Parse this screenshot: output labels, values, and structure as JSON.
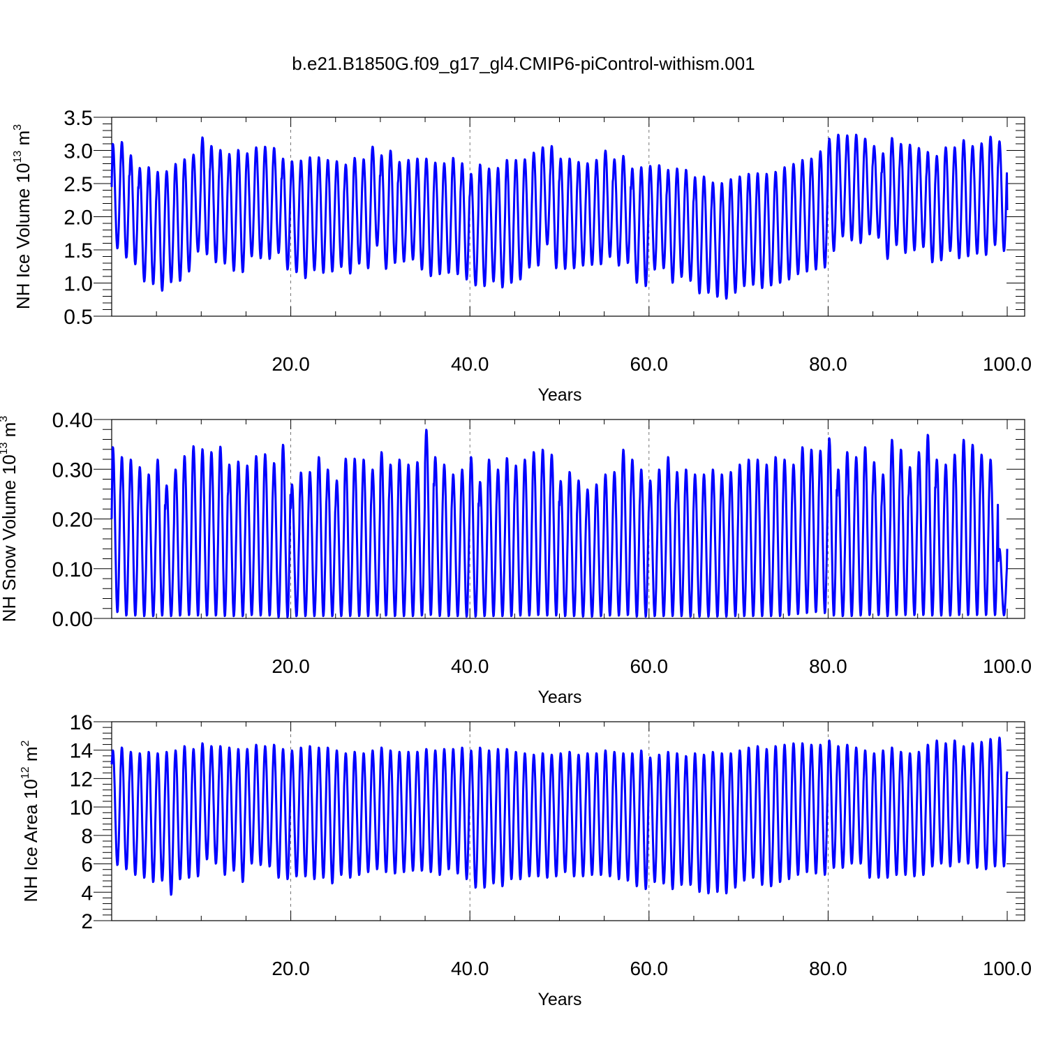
{
  "title": "b.e21.B1850G.f09_g17_gl4.CMIP6-piControl-withism.001",
  "line_color": "#0000ff",
  "grid_years": [
    20,
    40,
    60,
    80
  ],
  "chart_data": [
    {
      "type": "line",
      "title": "",
      "xlabel": "Years",
      "ylabel": "NH Ice Volume",
      "ylabel_units": "10",
      "ylabel_exp": "13",
      "ylabel_units2": "m",
      "ylabel_exp2": "3",
      "xlim": [
        0,
        100
      ],
      "ylim": [
        0.5,
        3.5
      ],
      "x_ticks": [
        "20.0",
        "40.0",
        "60.0",
        "80.0",
        "100.0"
      ],
      "y_ticks": [
        "0.5",
        "1.0",
        "1.5",
        "2.0",
        "2.5",
        "3.0",
        "3.5"
      ],
      "grid": "dashed vertical at 20, 40, 60, 80",
      "series": [
        {
          "start_value": 2.45,
          "end_value": 2.1,
          "annual_max": [
            3.1,
            3.13,
            2.93,
            2.74,
            2.75,
            2.68,
            2.69,
            2.8,
            2.87,
            2.94,
            3.2,
            3.07,
            3.01,
            2.95,
            3.01,
            2.96,
            3.05,
            3.06,
            3.04,
            2.88,
            2.84,
            2.85,
            2.9,
            2.9,
            2.86,
            2.84,
            2.79,
            2.89,
            2.87,
            3.06,
            2.93,
            3.0,
            2.83,
            2.86,
            2.88,
            2.88,
            2.82,
            2.81,
            2.89,
            2.81,
            2.65,
            2.79,
            2.73,
            2.74,
            2.86,
            2.86,
            2.87,
            2.97,
            3.05,
            3.07,
            2.88,
            2.88,
            2.83,
            2.81,
            2.86,
            3.0,
            2.87,
            2.92,
            2.73,
            2.75,
            2.77,
            2.78,
            2.71,
            2.73,
            2.71,
            2.6,
            2.61,
            2.52,
            2.51,
            2.57,
            2.61,
            2.65,
            2.66,
            2.65,
            2.68,
            2.75,
            2.8,
            2.86,
            2.88,
            2.99,
            3.18,
            3.24,
            3.23,
            3.24,
            3.18,
            3.07,
            2.96,
            3.19,
            3.1,
            3.09,
            3.04,
            2.98,
            2.92,
            3.05,
            3.05,
            3.16,
            3.07,
            3.11,
            3.21,
            3.14
          ],
          "annual_min": [
            1.52,
            1.38,
            1.28,
            1.02,
            0.98,
            0.88,
            1.01,
            1.03,
            1.17,
            1.47,
            1.43,
            1.31,
            1.29,
            1.18,
            1.16,
            1.4,
            1.37,
            1.36,
            1.45,
            1.2,
            1.16,
            1.07,
            1.19,
            1.15,
            1.17,
            1.24,
            1.14,
            1.29,
            1.22,
            1.56,
            1.21,
            1.3,
            1.32,
            1.35,
            1.2,
            1.1,
            1.13,
            1.15,
            1.13,
            1.05,
            0.96,
            0.95,
            1.02,
            0.93,
            1.0,
            1.05,
            1.23,
            1.26,
            1.58,
            1.22,
            1.21,
            1.22,
            1.26,
            1.27,
            1.28,
            1.39,
            1.26,
            1.3,
            1.0,
            0.95,
            1.2,
            1.22,
            1.0,
            1.09,
            1.03,
            0.84,
            0.85,
            0.79,
            0.76,
            0.85,
            0.95,
            0.97,
            0.92,
            0.96,
            1.0,
            1.05,
            1.13,
            1.17,
            1.2,
            1.23,
            1.48,
            1.7,
            1.64,
            1.6,
            1.73,
            1.68,
            1.36,
            1.57,
            1.45,
            1.49,
            1.54,
            1.31,
            1.34,
            1.48,
            1.37,
            1.4,
            1.44,
            1.42,
            1.57,
            1.48
          ]
        }
      ]
    },
    {
      "type": "line",
      "title": "",
      "xlabel": "Years",
      "ylabel": "NH Snow Volume",
      "ylabel_units": "10",
      "ylabel_exp": "13",
      "ylabel_units2": "m",
      "ylabel_exp2": "3",
      "xlim": [
        0,
        100
      ],
      "ylim": [
        0,
        0.4
      ],
      "x_ticks": [
        "20.0",
        "40.0",
        "60.0",
        "80.0",
        "100.0"
      ],
      "y_ticks": [
        "0.00",
        "0.10",
        "0.20",
        "0.30",
        "0.40"
      ],
      "grid": "dashed vertical at 20, 40, 60, 80",
      "series": [
        {
          "start_value": 0.2,
          "end_value": 0.14,
          "annual_max": [
            0.345,
            0.325,
            0.32,
            0.305,
            0.29,
            0.32,
            0.268,
            0.3,
            0.327,
            0.347,
            0.341,
            0.335,
            0.346,
            0.31,
            0.316,
            0.308,
            0.327,
            0.331,
            0.313,
            0.35,
            0.27,
            0.294,
            0.295,
            0.325,
            0.3,
            0.278,
            0.322,
            0.322,
            0.32,
            0.3,
            0.335,
            0.31,
            0.32,
            0.31,
            0.315,
            0.38,
            0.325,
            0.31,
            0.29,
            0.3,
            0.325,
            0.275,
            0.32,
            0.3,
            0.323,
            0.308,
            0.32,
            0.335,
            0.34,
            0.33,
            0.277,
            0.295,
            0.278,
            0.26,
            0.27,
            0.29,
            0.295,
            0.34,
            0.32,
            0.3,
            0.278,
            0.3,
            0.325,
            0.295,
            0.3,
            0.29,
            0.29,
            0.3,
            0.29,
            0.295,
            0.31,
            0.32,
            0.32,
            0.31,
            0.325,
            0.32,
            0.31,
            0.345,
            0.34,
            0.338,
            0.363,
            0.3,
            0.335,
            0.325,
            0.345,
            0.315,
            0.29,
            0.36,
            0.34,
            0.305,
            0.335,
            0.37,
            0.32,
            0.31,
            0.33,
            0.36,
            0.35,
            0.33,
            0.32,
            0.14
          ],
          "annual_min": [
            0.012,
            0.005,
            0.005,
            0.004,
            0.004,
            0.005,
            0.004,
            0.005,
            0.006,
            0.005,
            0.005,
            0.005,
            0.004,
            0.004,
            0.004,
            0.006,
            0.005,
            0.005,
            0.002,
            0.002,
            0.004,
            0.004,
            0.004,
            0.004,
            0.004,
            0.004,
            0.004,
            0.004,
            0.004,
            0.005,
            0.005,
            0.004,
            0.004,
            0.004,
            0.005,
            0.006,
            0.004,
            0.004,
            0.004,
            0.003,
            0.003,
            0.004,
            0.004,
            0.004,
            0.004,
            0.005,
            0.005,
            0.006,
            0.005,
            0.005,
            0.004,
            0.004,
            0.003,
            0.003,
            0.004,
            0.005,
            0.005,
            0.006,
            0.003,
            0.003,
            0.004,
            0.004,
            0.004,
            0.004,
            0.003,
            0.003,
            0.003,
            0.003,
            0.003,
            0.004,
            0.004,
            0.004,
            0.004,
            0.004,
            0.004,
            0.006,
            0.008,
            0.01,
            0.012,
            0.01,
            0.005,
            0.004,
            0.004,
            0.005,
            0.006,
            0.006,
            0.004,
            0.006,
            0.006,
            0.006,
            0.006,
            0.005,
            0.005,
            0.005,
            0.006,
            0.006,
            0.006,
            0.006,
            0.006,
            0.006
          ]
        }
      ]
    },
    {
      "type": "line",
      "title": "",
      "xlabel": "Years",
      "ylabel": "NH Ice Area",
      "ylabel_units": "10",
      "ylabel_exp": "12",
      "ylabel_units2": "m",
      "ylabel_exp2": "2",
      "xlim": [
        0,
        100
      ],
      "ylim": [
        2,
        16
      ],
      "x_ticks": [
        "20.0",
        "40.0",
        "60.0",
        "80.0",
        "100.0"
      ],
      "y_ticks": [
        "2",
        "4",
        "6",
        "8",
        "10",
        "12",
        "14",
        "16"
      ],
      "grid": "dashed vertical at 20, 40, 60, 80",
      "series": [
        {
          "start_value": 13.0,
          "end_value": 12.5,
          "annual_max": [
            14.0,
            14.2,
            13.9,
            13.8,
            13.9,
            13.8,
            13.9,
            14.0,
            14.3,
            14.1,
            14.5,
            14.3,
            14.3,
            14.2,
            14.1,
            14.1,
            14.4,
            14.3,
            14.4,
            14.1,
            14.0,
            14.2,
            14.3,
            14.2,
            14.2,
            14.0,
            13.8,
            13.9,
            13.8,
            14.0,
            14.2,
            14.0,
            13.9,
            13.9,
            13.9,
            14.1,
            14.0,
            14.1,
            14.1,
            14.2,
            14.0,
            14.2,
            14.0,
            14.1,
            14.1,
            13.9,
            13.8,
            13.7,
            13.8,
            13.7,
            13.8,
            13.9,
            13.7,
            13.8,
            13.8,
            14.0,
            13.9,
            13.8,
            13.8,
            14.0,
            13.5,
            13.7,
            13.9,
            13.8,
            13.6,
            13.8,
            13.7,
            13.9,
            13.8,
            13.8,
            14.0,
            14.2,
            14.3,
            14.1,
            14.3,
            14.4,
            14.5,
            14.5,
            14.4,
            14.4,
            14.7,
            14.3,
            14.4,
            14.2,
            14.0,
            13.8,
            14.0,
            14.2,
            13.9,
            13.8,
            13.9,
            14.4,
            14.7,
            14.5,
            14.7,
            14.3,
            14.5,
            14.6,
            14.8,
            14.9
          ],
          "annual_min": [
            5.9,
            5.6,
            5.2,
            5.0,
            4.7,
            4.8,
            3.8,
            4.9,
            5.0,
            5.1,
            6.3,
            6.0,
            5.2,
            5.5,
            4.7,
            6.0,
            5.9,
            5.8,
            5.0,
            4.9,
            5.1,
            5.1,
            4.9,
            5.0,
            4.6,
            5.2,
            5.0,
            5.2,
            5.4,
            5.6,
            5.4,
            5.3,
            5.4,
            5.5,
            5.5,
            5.4,
            5.2,
            5.6,
            5.3,
            4.9,
            4.3,
            4.3,
            4.6,
            4.4,
            4.9,
            4.9,
            5.1,
            5.1,
            5.0,
            5.1,
            5.4,
            5.1,
            5.1,
            5.2,
            5.2,
            5.1,
            4.9,
            4.8,
            4.4,
            4.2,
            4.7,
            4.6,
            4.2,
            4.5,
            4.5,
            4.0,
            3.9,
            4.0,
            3.9,
            4.3,
            4.8,
            5.0,
            4.5,
            4.4,
            4.7,
            4.9,
            5.2,
            5.4,
            5.3,
            5.2,
            5.7,
            5.7,
            6.0,
            6.0,
            5.0,
            5.0,
            5.0,
            5.2,
            5.2,
            5.1,
            5.2,
            5.8,
            6.0,
            5.8,
            6.1,
            6.0,
            5.7,
            5.6,
            5.8,
            5.8
          ]
        }
      ]
    }
  ]
}
